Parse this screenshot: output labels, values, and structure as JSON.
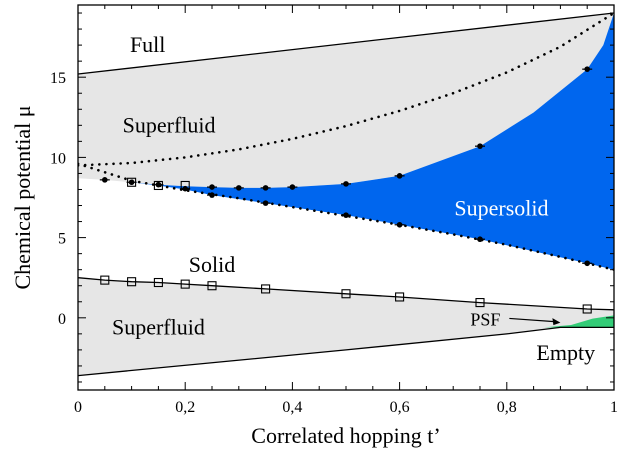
{
  "chart_data": {
    "type": "area",
    "xlabel": "Correlated hopping t’",
    "ylabel": "Chemical potential  μ",
    "xlim": [
      0,
      1
    ],
    "ylim": [
      -4.5,
      19.5
    ],
    "grid": false,
    "x_ticks": [
      0,
      0.2,
      0.4,
      0.6,
      0.8,
      1
    ],
    "x_tick_labels": [
      "0",
      "0,2",
      "0,4",
      "0,6",
      "0,8",
      "1"
    ],
    "y_ticks": [
      0,
      5,
      10,
      15
    ],
    "y_tick_labels": [
      "0",
      "5",
      "10",
      "15"
    ],
    "colors": {
      "superfluid": "#e6e6e6",
      "supersolid": "#0066ee",
      "psf": "#33cc77",
      "line": "#000000"
    },
    "regions": [
      {
        "name": "Full",
        "x": 0.13,
        "y": 17.0
      },
      {
        "name": "Superfluid",
        "x": 0.17,
        "y": 12.0
      },
      {
        "name": "Supersolid",
        "x": 0.79,
        "y": 6.8
      },
      {
        "name": "Solid",
        "x": 0.25,
        "y": 3.3
      },
      {
        "name": "Superfluid",
        "x": 0.15,
        "y": -0.6
      },
      {
        "name": "Empty",
        "x": 0.91,
        "y": -2.2
      }
    ],
    "psf_annotation": {
      "label": "PSF",
      "text_x": 0.76,
      "text_y": -0.1,
      "arrow_to_x": 0.9,
      "arrow_to_y": -0.3
    },
    "series": [
      {
        "name": "upper superfluid/full boundary",
        "style": "solid",
        "x": [
          0,
          1
        ],
        "y": [
          15.2,
          19.0
        ]
      },
      {
        "name": "lower superfluid/empty boundary",
        "style": "solid",
        "x": [
          0,
          0.5,
          0.8,
          0.9,
          1.0
        ],
        "y": [
          -3.6,
          -2.0,
          -1.0,
          -0.6,
          -0.6
        ]
      },
      {
        "name": "solid/superfluid lower boundary",
        "style": "solid",
        "x": [
          0,
          0.05,
          0.1,
          0.15,
          0.2,
          0.25,
          0.35,
          0.5,
          0.6,
          0.75,
          0.95,
          1.0
        ],
        "y": [
          2.5,
          2.35,
          2.25,
          2.2,
          2.1,
          2.0,
          1.8,
          1.5,
          1.3,
          0.95,
          0.55,
          0.5
        ]
      },
      {
        "name": "superfluid/supersolid boundary",
        "style": "none",
        "x": [
          0,
          0.05,
          0.1,
          0.15,
          0.2,
          0.25,
          0.3,
          0.35,
          0.4,
          0.5,
          0.6,
          0.75,
          0.85,
          0.95,
          0.98,
          1.0
        ],
        "y": [
          8.7,
          8.6,
          8.45,
          8.3,
          8.2,
          8.15,
          8.1,
          8.1,
          8.15,
          8.35,
          8.85,
          10.7,
          12.8,
          15.5,
          17.0,
          19.0
        ]
      },
      {
        "name": "solid/supersolid boundary",
        "style": "none",
        "x": [
          0,
          0.05,
          0.1,
          0.15,
          0.2,
          0.25,
          0.35,
          0.5,
          0.6,
          0.75,
          0.95,
          1.0
        ],
        "y": [
          8.7,
          8.6,
          8.45,
          8.25,
          8.0,
          7.65,
          7.15,
          6.4,
          5.8,
          4.9,
          3.4,
          3.0
        ]
      },
      {
        "name": "dotted upper",
        "style": "dotted",
        "x": [
          0,
          0.1,
          0.2,
          0.3,
          0.4,
          0.5,
          0.6,
          0.7,
          0.8,
          0.9,
          1.0
        ],
        "y": [
          9.5,
          9.65,
          10.0,
          10.5,
          11.15,
          11.95,
          12.9,
          14.0,
          15.3,
          16.9,
          19.0
        ]
      },
      {
        "name": "dotted lower",
        "style": "dotted",
        "x": [
          0,
          0.1,
          0.2,
          0.3,
          0.4,
          0.5,
          0.6,
          0.7,
          0.8,
          0.9,
          1.0
        ],
        "y": [
          9.6,
          8.55,
          7.95,
          7.45,
          6.9,
          6.35,
          5.8,
          5.2,
          4.55,
          3.8,
          3.0
        ]
      },
      {
        "name": "filled circles",
        "style": "markers-circle",
        "x": [
          0.05,
          0.1,
          0.15,
          0.2,
          0.25,
          0.3,
          0.35,
          0.4,
          0.5,
          0.6,
          0.75,
          0.95,
          0.25,
          0.35,
          0.5,
          0.6,
          0.75,
          0.95
        ],
        "y": [
          8.6,
          8.45,
          8.3,
          8.05,
          8.15,
          8.1,
          8.1,
          8.15,
          8.35,
          8.85,
          10.7,
          15.5,
          7.65,
          7.15,
          6.4,
          5.8,
          4.9,
          3.4
        ]
      },
      {
        "name": "open squares",
        "style": "markers-square",
        "x": [
          0.1,
          0.15,
          0.2,
          0.05,
          0.1,
          0.15,
          0.2,
          0.25,
          0.35,
          0.5,
          0.6,
          0.75,
          0.95
        ],
        "y": [
          8.45,
          8.25,
          8.25,
          2.35,
          2.25,
          2.2,
          2.1,
          2.0,
          1.8,
          1.5,
          1.3,
          0.95,
          0.55
        ]
      }
    ]
  }
}
